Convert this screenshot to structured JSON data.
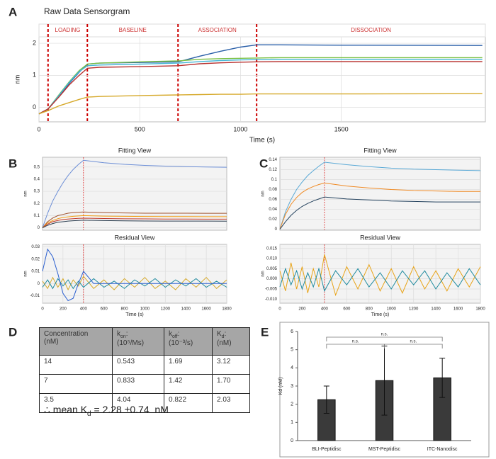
{
  "panel_labels": [
    "A",
    "B",
    "C",
    "D",
    "E"
  ],
  "chart_data": [
    {
      "type": "line",
      "title": "Raw Data Sensorgram",
      "xlabel": "Time (s)",
      "ylabel": "nm",
      "phases": [
        "LOADING",
        "BASELINE",
        "ASSOCIATION",
        "DISSOCIATION"
      ],
      "phase_boundaries": [
        45,
        240,
        690,
        1080
      ],
      "x": [
        0,
        45,
        100,
        150,
        200,
        240,
        300,
        500,
        690,
        800,
        900,
        1000,
        1080,
        1200,
        1500,
        2200
      ],
      "xlim": [
        0,
        2215
      ],
      "xticks": [
        0,
        500,
        1000,
        1500
      ],
      "ylim": [
        -0.45,
        2.2
      ],
      "yticks": [
        0,
        1,
        2
      ],
      "grid": true,
      "series": [
        {
          "color": "#2a5fa8",
          "values": [
            -0.2,
            -0.05,
            0.35,
            0.75,
            1.1,
            1.35,
            1.38,
            1.4,
            1.42,
            1.6,
            1.75,
            1.88,
            1.95,
            1.95,
            1.94,
            1.93
          ]
        },
        {
          "color": "#7ac043",
          "values": [
            -0.2,
            -0.05,
            0.4,
            0.8,
            1.15,
            1.35,
            1.38,
            1.42,
            1.45,
            1.5,
            1.52,
            1.53,
            1.54,
            1.55,
            1.55,
            1.55
          ]
        },
        {
          "color": "#45b6d6",
          "values": [
            -0.2,
            -0.05,
            0.38,
            0.78,
            1.12,
            1.3,
            1.32,
            1.35,
            1.38,
            1.43,
            1.46,
            1.48,
            1.49,
            1.5,
            1.5,
            1.5
          ]
        },
        {
          "color": "#b8312f",
          "values": [
            -0.2,
            -0.05,
            0.33,
            0.7,
            1.0,
            1.22,
            1.25,
            1.27,
            1.3,
            1.36,
            1.39,
            1.41,
            1.42,
            1.43,
            1.43,
            1.43
          ]
        },
        {
          "color": "#d6a92a",
          "values": [
            -0.2,
            -0.1,
            0.05,
            0.15,
            0.25,
            0.32,
            0.34,
            0.37,
            0.39,
            0.4,
            0.41,
            0.41,
            0.42,
            0.42,
            0.42,
            0.43
          ]
        }
      ]
    },
    {
      "type": "line",
      "title": "Fitting View",
      "ylabel": "nm",
      "marker_x": 400,
      "x": [
        0,
        50,
        100,
        150,
        200,
        250,
        300,
        350,
        400,
        600,
        800,
        1000,
        1200,
        1400,
        1600,
        1800
      ],
      "xlim": [
        0,
        1800
      ],
      "ylim": [
        -0.02,
        0.58
      ],
      "yticks": [
        0,
        0.1,
        0.2,
        0.3,
        0.4,
        0.5
      ],
      "grid": true,
      "series": [
        {
          "color": "#6c8ed6",
          "values": [
            0,
            0.12,
            0.22,
            0.3,
            0.37,
            0.43,
            0.48,
            0.52,
            0.555,
            0.535,
            0.522,
            0.513,
            0.507,
            0.503,
            0.5,
            0.498
          ]
        },
        {
          "color": "#a0522d",
          "values": [
            0,
            0.05,
            0.08,
            0.1,
            0.11,
            0.12,
            0.125,
            0.128,
            0.13,
            0.125,
            0.122,
            0.12,
            0.12,
            0.12,
            0.119,
            0.119
          ]
        },
        {
          "color": "#f39c12",
          "values": [
            0,
            0.04,
            0.06,
            0.075,
            0.085,
            0.09,
            0.094,
            0.097,
            0.1,
            0.096,
            0.094,
            0.093,
            0.092,
            0.092,
            0.091,
            0.091
          ]
        },
        {
          "color": "#c0392b",
          "values": [
            0,
            0.03,
            0.05,
            0.06,
            0.068,
            0.072,
            0.075,
            0.077,
            0.079,
            0.076,
            0.074,
            0.073,
            0.072,
            0.072,
            0.071,
            0.071
          ]
        },
        {
          "color": "#2c3e50",
          "values": [
            0,
            0.02,
            0.035,
            0.045,
            0.05,
            0.055,
            0.058,
            0.06,
            0.062,
            0.059,
            0.057,
            0.056,
            0.055,
            0.055,
            0.055,
            0.054
          ]
        }
      ]
    },
    {
      "type": "line",
      "title": "Residual View",
      "xlabel": "Time (s)",
      "ylabel": "nm",
      "marker_x": 400,
      "x": [
        0,
        50,
        100,
        150,
        200,
        250,
        300,
        350,
        400,
        500,
        600,
        700,
        800,
        900,
        1000,
        1100,
        1200,
        1300,
        1400,
        1500,
        1600,
        1700,
        1800
      ],
      "xlim": [
        0,
        1800
      ],
      "xticks": [
        0,
        200,
        400,
        600,
        800,
        1000,
        1200,
        1400,
        1600,
        1800
      ],
      "ylim": [
        -0.016,
        0.032
      ],
      "yticks": [
        -0.01,
        0,
        0.01,
        0.02,
        0.03
      ],
      "grid": true,
      "series": [
        {
          "color": "#d6a92a",
          "values": [
            0.002,
            -0.004,
            0.005,
            -0.003,
            0.004,
            -0.005,
            0.003,
            -0.002,
            0.006,
            -0.004,
            0.003,
            -0.005,
            0.004,
            -0.003,
            0.005,
            -0.004,
            0.002,
            -0.005,
            0.004,
            -0.003,
            0.005,
            -0.004,
            0.003
          ]
        },
        {
          "color": "#1f8a9e",
          "values": [
            -0.003,
            0.003,
            -0.004,
            0.004,
            -0.002,
            0.003,
            -0.004,
            0.002,
            -0.003,
            0.004,
            -0.003,
            0.002,
            -0.004,
            0.003,
            -0.002,
            0.004,
            -0.003,
            0.003,
            -0.002,
            0.004,
            -0.003,
            0.002,
            -0.003
          ]
        },
        {
          "color": "#2a5fd0",
          "values": [
            0.01,
            0.028,
            0.022,
            0.008,
            -0.008,
            -0.014,
            -0.012,
            0.0,
            0.01,
            0,
            0,
            0,
            0,
            0,
            0,
            0,
            0,
            0,
            0,
            0,
            0,
            0,
            0
          ]
        }
      ]
    },
    {
      "type": "line",
      "title": "Fitting View",
      "ylabel": "nm",
      "marker_x": 400,
      "x": [
        0,
        50,
        100,
        150,
        200,
        250,
        300,
        350,
        400,
        600,
        800,
        1000,
        1200,
        1400,
        1600,
        1800
      ],
      "xlim": [
        0,
        1800
      ],
      "ylim": [
        -0.002,
        0.145
      ],
      "yticks": [
        0,
        0.02,
        0.04,
        0.06,
        0.08,
        0.1,
        0.12,
        0.14
      ],
      "grid": true,
      "series": [
        {
          "color": "#5aa9d6",
          "values": [
            0,
            0.035,
            0.06,
            0.08,
            0.095,
            0.108,
            0.118,
            0.127,
            0.135,
            0.13,
            0.126,
            0.123,
            0.121,
            0.12,
            0.119,
            0.118
          ]
        },
        {
          "color": "#f08a24",
          "values": [
            0,
            0.03,
            0.05,
            0.064,
            0.074,
            0.081,
            0.086,
            0.09,
            0.093,
            0.087,
            0.083,
            0.08,
            0.078,
            0.077,
            0.076,
            0.076
          ]
        },
        {
          "color": "#24425e",
          "values": [
            0,
            0.015,
            0.028,
            0.038,
            0.046,
            0.052,
            0.057,
            0.061,
            0.065,
            0.061,
            0.059,
            0.057,
            0.056,
            0.055,
            0.055,
            0.055
          ]
        }
      ]
    },
    {
      "type": "line",
      "title": "Residual View",
      "xlabel": "Time (s)",
      "ylabel": "nm",
      "marker_x": 400,
      "x": [
        0,
        50,
        100,
        150,
        200,
        250,
        300,
        350,
        400,
        500,
        600,
        700,
        800,
        900,
        1000,
        1100,
        1200,
        1300,
        1400,
        1500,
        1600,
        1700,
        1800
      ],
      "xlim": [
        0,
        1800
      ],
      "xticks": [
        0,
        200,
        400,
        600,
        800,
        1000,
        1200,
        1400,
        1600,
        1800
      ],
      "ylim": [
        -0.012,
        0.017
      ],
      "yticks": [
        {
          "value": -0.01,
          "label": "-0.010"
        },
        {
          "value": -0.005,
          "label": "-0.005"
        },
        {
          "value": 0,
          "label": "0.000"
        },
        {
          "value": 0.005,
          "label": "0.005"
        },
        {
          "value": 0.01,
          "label": "0.010"
        },
        {
          "value": 0.015,
          "label": "0.015"
        }
      ],
      "grid": true,
      "series": [
        {
          "color": "#e8a317",
          "values": [
            0.004,
            -0.006,
            0.008,
            -0.005,
            0.006,
            -0.007,
            0.005,
            -0.004,
            0.012,
            -0.008,
            0.006,
            -0.005,
            0.007,
            -0.006,
            0.005,
            -0.007,
            0.006,
            -0.005,
            0.004,
            -0.006,
            0.005,
            -0.004,
            0.006
          ]
        },
        {
          "color": "#1f8a9e",
          "values": [
            -0.004,
            0.005,
            -0.003,
            0.004,
            -0.005,
            0.003,
            -0.004,
            0.005,
            -0.006,
            0.004,
            -0.003,
            0.005,
            -0.004,
            0.003,
            -0.005,
            0.004,
            -0.003,
            0.004,
            -0.005,
            0.003,
            -0.004,
            0.005,
            -0.003
          ]
        }
      ]
    },
    {
      "type": "bar",
      "ylabel": "Kd (nM)",
      "categories": [
        "BLI-Peptidisc",
        "MST-Peptidisc",
        "ITC-Nanodisc"
      ],
      "values": [
        2.25,
        3.3,
        3.45
      ],
      "errors": [
        0.75,
        1.9,
        1.08
      ],
      "color": "#3a3a3a",
      "ylim": [
        0,
        6
      ],
      "yticks": [
        0,
        1,
        2,
        3,
        4,
        5,
        6
      ],
      "significance": [
        "n.s.",
        "n.s.",
        "n.s."
      ]
    }
  ],
  "table": {
    "header": [
      {
        "title": "Concentration",
        "unit": "(nM)"
      },
      {
        "symbol": "k",
        "subscript": "on",
        "suffix": ":",
        "unit": "(10⁵/Ms)"
      },
      {
        "symbol": "k",
        "subscript": "off",
        "suffix": ":",
        "unit": "(10⁻³/s)"
      },
      {
        "symbol": "K",
        "subscript": "d",
        "suffix": ":",
        "unit": "(nM)"
      }
    ],
    "rows": [
      [
        "14",
        "0.543",
        "1.69",
        "3.12"
      ],
      [
        "7",
        "0.833",
        "1.42",
        "1.70"
      ],
      [
        "3.5",
        "4.04",
        "0.822",
        "2.03"
      ]
    ],
    "summary": {
      "prefix": "∴ mean K",
      "subscript": "d",
      "suffix": " = 2.28 ±0.74  nM"
    }
  }
}
